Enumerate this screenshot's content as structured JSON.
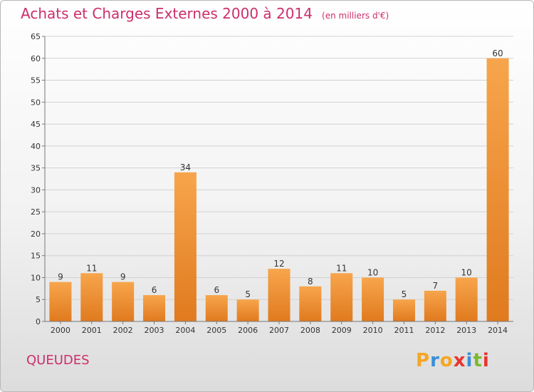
{
  "title": "Achats et Charges Externes 2000 à 2014",
  "unit": "(en milliers d'€)",
  "commune": "QUEUDES",
  "logo": {
    "text": "Proxiti",
    "letters": [
      "P",
      "r",
      "o",
      "x",
      "i",
      "t",
      "i"
    ],
    "colors": [
      "#f5a623",
      "#3a8fd8",
      "#f5a623",
      "#e8342f",
      "#3a8fd8",
      "#7cb82f",
      "#e8342f"
    ]
  },
  "colors": {
    "bar_top": "#f7a54c",
    "bar_bottom": "#e07a1e",
    "title": "#cc2f6b"
  },
  "chart_data": {
    "type": "bar",
    "title": "Achats et Charges Externes 2000 à 2014",
    "subtitle": "(en milliers d'€)",
    "categories": [
      "2000",
      "2001",
      "2002",
      "2003",
      "2004",
      "2005",
      "2006",
      "2007",
      "2008",
      "2009",
      "2010",
      "2011",
      "2012",
      "2013",
      "2014"
    ],
    "values": [
      9,
      11,
      9,
      6,
      34,
      6,
      5,
      12,
      8,
      11,
      10,
      5,
      7,
      10,
      60
    ],
    "ylim": [
      0,
      65
    ],
    "yticks": [
      0,
      5,
      10,
      15,
      20,
      25,
      30,
      35,
      40,
      45,
      50,
      55,
      60,
      65
    ],
    "grid": true,
    "data_labels": true
  }
}
